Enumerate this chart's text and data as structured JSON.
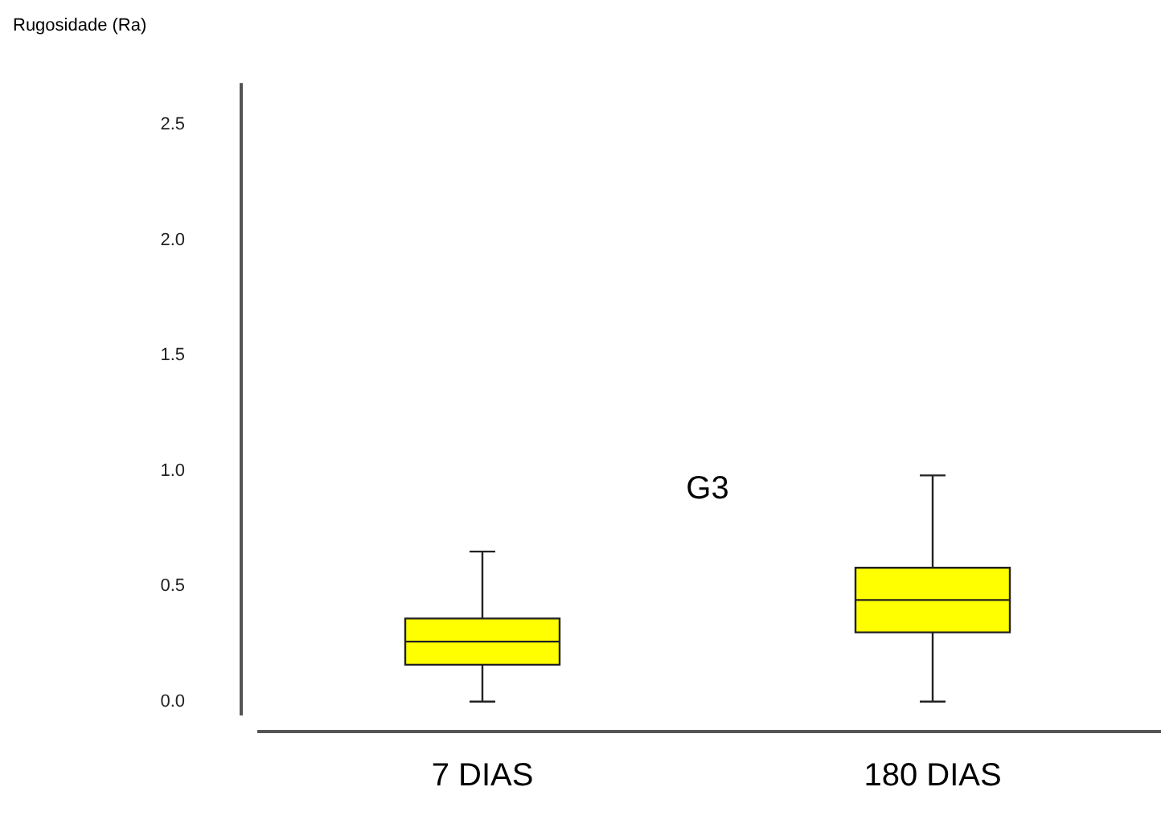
{
  "chart_data": {
    "type": "box",
    "ylabel": "Rugosidade (Ra)",
    "annotations": [
      "G3"
    ],
    "categories": [
      "7 DIAS",
      "180 DIAS"
    ],
    "color": "#ffff00",
    "boxes": [
      {
        "low": 0,
        "q1": 0.16,
        "median": 0.26,
        "q3": 0.36,
        "high": 0.65
      },
      {
        "low": 0,
        "q1": 0.3,
        "median": 0.44,
        "q3": 0.58,
        "high": 0.98
      }
    ],
    "ylim": [
      -0.06,
      2.68
    ],
    "yticks": [
      {
        "value": 0,
        "label": "0.0"
      },
      {
        "value": 0.5,
        "label": "0.5"
      },
      {
        "value": 1,
        "label": "1.0"
      },
      {
        "value": 1.5,
        "label": "1.5"
      },
      {
        "value": 2,
        "label": "2.0"
      },
      {
        "value": 2.5,
        "label": "2.5"
      }
    ],
    "grid": false,
    "legend": false
  }
}
